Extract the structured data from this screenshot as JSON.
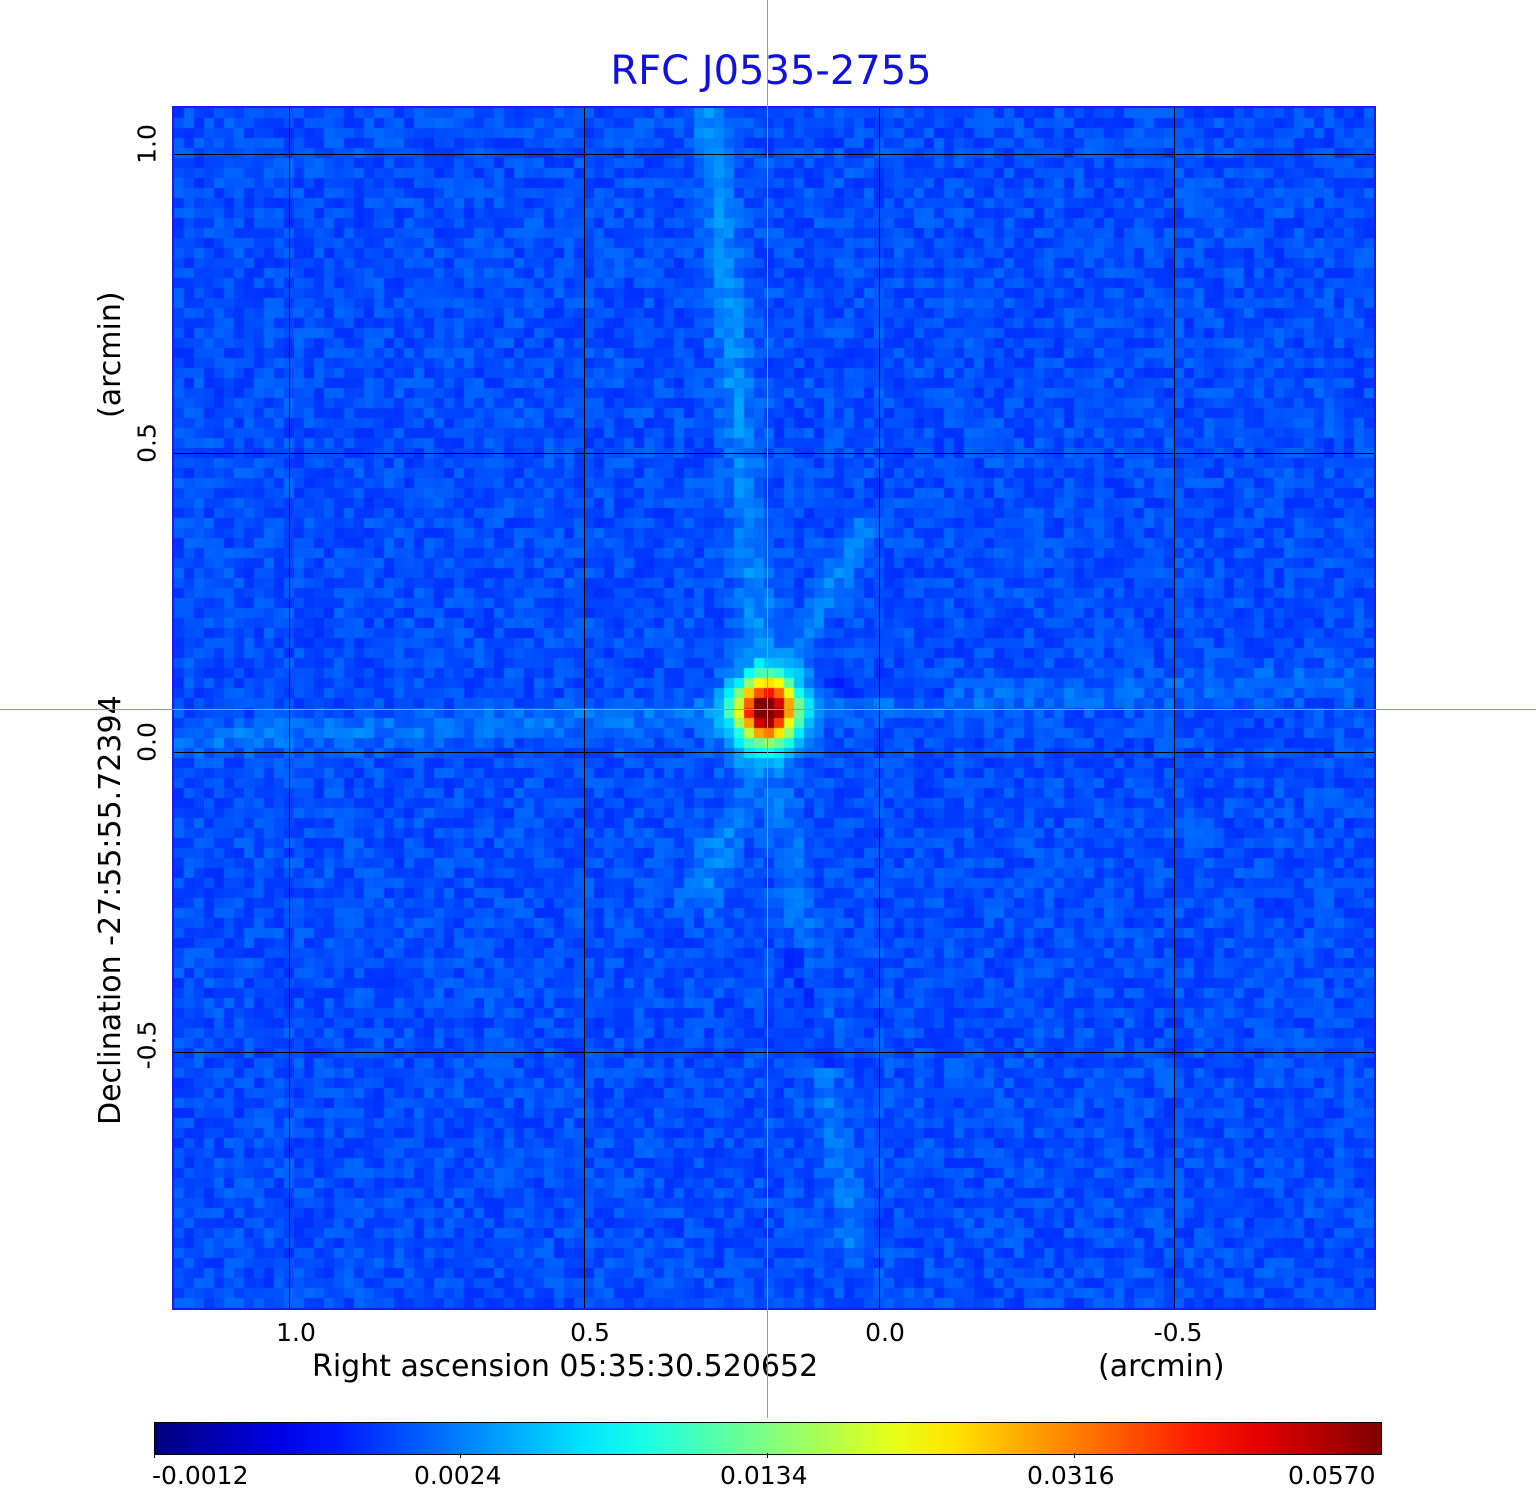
{
  "chart_data": {
    "type": "heatmap",
    "title": "RFC J0535-2755",
    "xlabel": "Right ascension  05:35:30.520652",
    "x_unit": "(arcmin)",
    "ylabel": "Declination  -27:55:55.72394",
    "y_unit": "(arcmin)",
    "x_ticks": [
      "1.0",
      "0.5",
      "0.0",
      "-0.5"
    ],
    "y_ticks": [
      "1.0",
      "0.5",
      "0.0",
      "-0.5"
    ],
    "x_tick_values": [
      1.0,
      0.5,
      0.0,
      -0.5
    ],
    "y_tick_values": [
      1.0,
      0.5,
      0.0,
      -0.5
    ],
    "xlim": [
      1.19,
      -0.84
    ],
    "ylim": [
      -0.93,
      1.08
    ],
    "grid": true,
    "colormap": "jet",
    "colorbar": {
      "ticks": [
        "-0.0012",
        "0.0024",
        "0.0134",
        "0.0316",
        "0.0570"
      ],
      "placement": "bottom"
    },
    "source": {
      "ra_offset_arcmin": 0.19,
      "dec_offset_arcmin": 0.07,
      "peak_value": 0.057
    },
    "crosshair": {
      "ra_offset_arcmin": 0.19,
      "dec_offset_arcmin": 0.07,
      "color": "#3ddc3d"
    },
    "colors": {
      "title": "#1010e0",
      "frame": "#1a1aff"
    }
  }
}
